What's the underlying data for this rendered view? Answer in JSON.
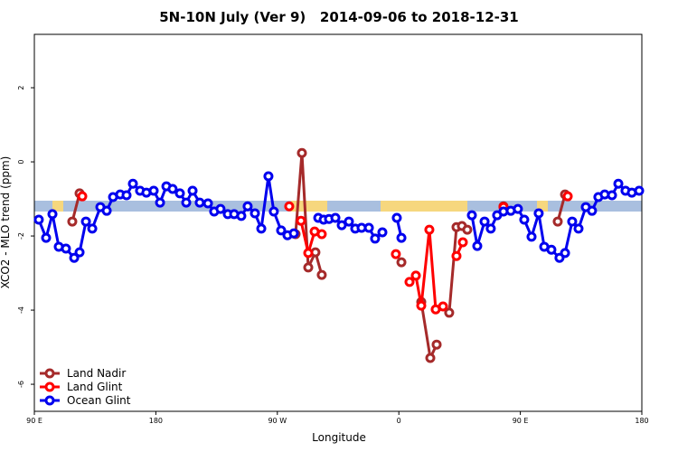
{
  "chart_data": {
    "type": "line",
    "title": "5N-10N July (Ver 9)   2014-09-06 to 2018-12-31",
    "xlabel": "Longitude",
    "ylabel": "XCO2 - MLO trend (ppm)",
    "xlim": [
      90,
      540
    ],
    "xticks": [
      {
        "value": 90,
        "label": "90 E"
      },
      180,
      {
        "value": 270,
        "label": "90 W"
      },
      {
        "value": 360,
        "label": "0"
      },
      {
        "value": 450,
        "label": "90 E"
      },
      {
        "value": 540,
        "label": "180"
      }
    ],
    "ylim": [
      -6.73,
      3.44
    ],
    "yticks": [
      2,
      0,
      -2,
      -4,
      -6
    ],
    "legend": "bottomleft",
    "series": [
      {
        "name": "Land Nadir",
        "color": "#a52a2a",
        "x": [
          118.1,
          123.5,
          null,
          283.5,
          288.2,
          292.9,
          298.2,
          302.9,
          null,
          361.9,
          null,
          376.6,
          383.3,
          388.0,
          null,
          397.3,
          402.7,
          406.7,
          410.7,
          null,
          437.5,
          null,
          477.7,
          483.1
        ],
        "values": [
          -1.61,
          -0.85,
          null,
          -1.95,
          0.24,
          -2.85,
          -2.44,
          -3.05,
          null,
          -2.71,
          null,
          -3.78,
          -5.29,
          -4.93,
          null,
          -4.07,
          -1.76,
          -1.73,
          -1.83,
          null,
          -1.2,
          null,
          -1.61,
          -0.88
        ]
      },
      {
        "name": "Land Glint",
        "color": "#ff0000",
        "x": [
          125.5,
          null,
          278.8,
          null,
          287.5,
          292.9,
          297.6,
          302.9,
          null,
          357.8,
          null,
          367.9,
          372.6,
          376.6,
          382.6,
          387.3,
          392.7,
          null,
          402.7,
          407.4,
          null,
          437.5,
          null,
          485.1
        ],
        "values": [
          -0.93,
          null,
          -1.2,
          null,
          -1.59,
          -2.46,
          -1.88,
          -1.95,
          null,
          -2.49,
          null,
          -3.24,
          -3.07,
          -3.88,
          -1.83,
          -3.98,
          -3.9,
          null,
          -2.54,
          -2.17,
          null,
          -1.22,
          null,
          -0.93
        ]
      },
      {
        "name": "Ocean Glint",
        "color": "#0000ee",
        "x": [
          93.3,
          98.7,
          103.4,
          108.1,
          113.4,
          119.5,
          123.5,
          128.2,
          132.9,
          138.9,
          143.6,
          148.3,
          153.6,
          158.3,
          163.0,
          168.3,
          173.0,
          178.4,
          183.1,
          187.8,
          192.4,
          197.8,
          202.5,
          207.2,
          212.5,
          218.6,
          223.2,
          227.9,
          233.3,
          238.0,
          243.3,
          248.0,
          253.4,
          258.1,
          263.4,
          267.4,
          272.8,
          277.5,
          282.2,
          null,
          300.3,
          304.3,
          308.3,
          313.0,
          317.7,
          323.0,
          327.7,
          332.4,
          337.8,
          342.4,
          347.8,
          null,
          358.5,
          361.9,
          null,
          414.1,
          418.1,
          423.5,
          428.1,
          432.8,
          437.5,
          442.9,
          448.2,
          452.9,
          458.3,
          463.6,
          467.7,
          473.0,
          479.0,
          483.1,
          488.4,
          493.1,
          498.5,
          503.1,
          507.8,
          512.5,
          517.9,
          522.6,
          527.9,
          532.6,
          538.0
        ],
        "values": [
          -1.56,
          -2.05,
          -1.41,
          -2.29,
          -2.34,
          -2.59,
          -2.44,
          -1.61,
          -1.8,
          -1.22,
          -1.32,
          -0.95,
          -0.88,
          -0.9,
          -0.59,
          -0.78,
          -0.83,
          -0.78,
          -1.1,
          -0.66,
          -0.73,
          -0.85,
          -1.1,
          -0.78,
          -1.1,
          -1.12,
          -1.34,
          -1.27,
          -1.41,
          -1.41,
          -1.46,
          -1.2,
          -1.39,
          -1.8,
          -0.39,
          -1.34,
          -1.85,
          -1.98,
          -1.93,
          null,
          -1.51,
          -1.56,
          -1.54,
          -1.51,
          -1.71,
          -1.61,
          -1.8,
          -1.78,
          -1.78,
          -2.07,
          -1.9,
          null,
          -1.51,
          -2.05,
          null,
          -1.44,
          -2.27,
          -1.61,
          -1.8,
          -1.44,
          -1.34,
          -1.32,
          -1.27,
          -1.56,
          -2.02,
          -1.39,
          -2.29,
          -2.37,
          -2.59,
          -2.46,
          -1.61,
          -1.8,
          -1.22,
          -1.32,
          -0.95,
          -0.88,
          -0.9,
          -0.59,
          -0.78,
          -0.83,
          -0.78
        ]
      }
    ]
  }
}
